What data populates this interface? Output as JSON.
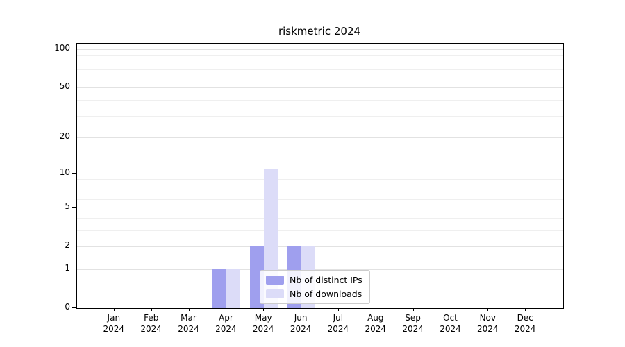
{
  "title": "riskmetric 2024",
  "chart_data": {
    "type": "bar",
    "title": "riskmetric 2024",
    "xlabel": "",
    "ylabel": "",
    "yscale": "log1p",
    "ylim": [
      0,
      100
    ],
    "yticks": [
      0,
      1,
      2,
      5,
      10,
      20,
      50,
      100
    ],
    "minor_yticks": [
      3,
      4,
      6,
      7,
      8,
      9,
      30,
      40,
      60,
      70,
      80,
      90
    ],
    "grid": "horizontal, major and minor",
    "legend_position": "lower center inside plot",
    "categories": [
      {
        "month": "Jan",
        "year": "2024"
      },
      {
        "month": "Feb",
        "year": "2024"
      },
      {
        "month": "Mar",
        "year": "2024"
      },
      {
        "month": "Apr",
        "year": "2024"
      },
      {
        "month": "May",
        "year": "2024"
      },
      {
        "month": "Jun",
        "year": "2024"
      },
      {
        "month": "Jul",
        "year": "2024"
      },
      {
        "month": "Aug",
        "year": "2024"
      },
      {
        "month": "Sep",
        "year": "2024"
      },
      {
        "month": "Oct",
        "year": "2024"
      },
      {
        "month": "Nov",
        "year": "2024"
      },
      {
        "month": "Dec",
        "year": "2024"
      }
    ],
    "series": [
      {
        "name": "Nb of distinct IPs",
        "color": "#9f9fee",
        "values": [
          0,
          0,
          0,
          1,
          2,
          2,
          0,
          0,
          0,
          0,
          0,
          0
        ]
      },
      {
        "name": "Nb of downloads",
        "color": "#dcdcf8",
        "values": [
          0,
          0,
          0,
          1,
          11,
          2,
          0,
          0,
          0,
          0,
          0,
          0
        ]
      }
    ]
  }
}
